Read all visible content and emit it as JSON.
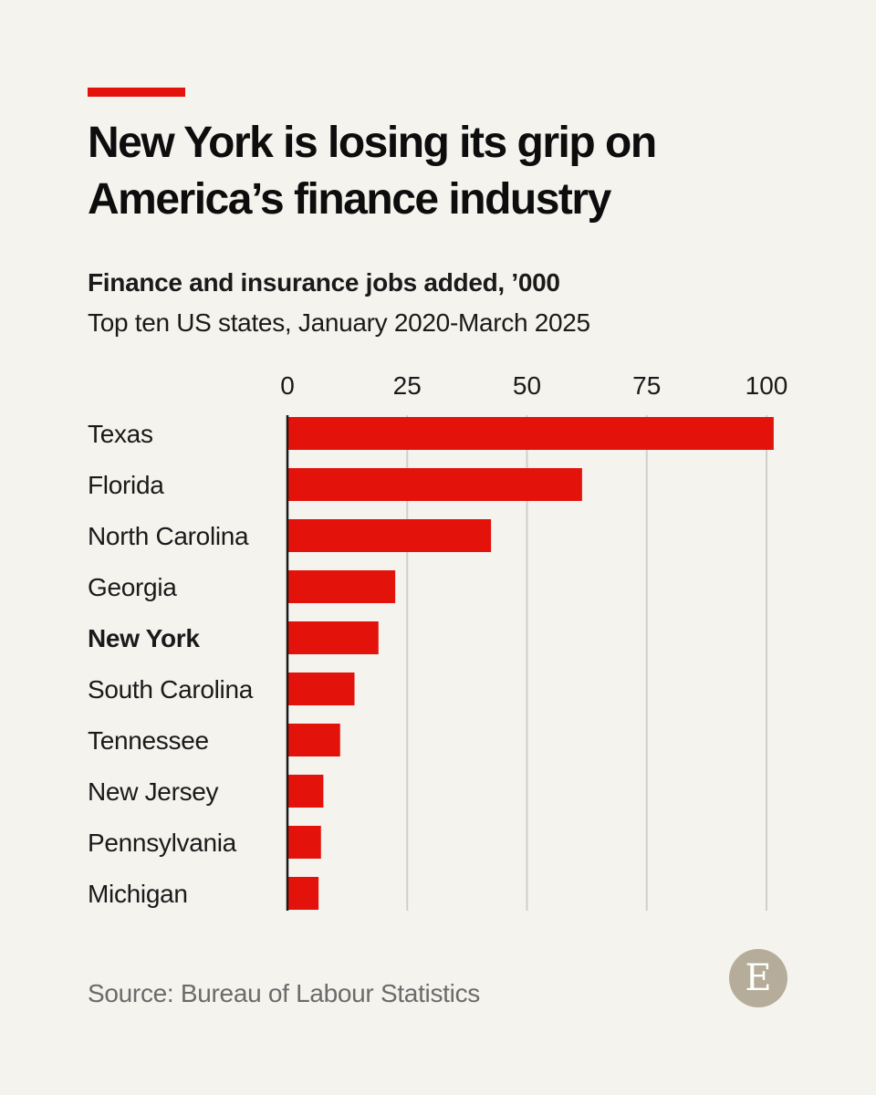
{
  "header": {
    "title_line1": "New York is losing its grip on",
    "title_line2": "America’s finance industry",
    "subtitle": "Finance and insurance jobs added, ’000",
    "description": "Top ten US states, January 2020-March 2025"
  },
  "footer": {
    "source": "Source: Bureau of Labour Statistics",
    "logo_letter": "E"
  },
  "colors": {
    "accent": "#e3120b",
    "bar": "#e3120b",
    "gridline": "#d0cfcb",
    "baseline": "#1a1a1a",
    "logo_bg": "#b5ad99"
  },
  "chart_data": {
    "type": "bar",
    "orientation": "horizontal",
    "categories": [
      "Texas",
      "Florida",
      "North Carolina",
      "Georgia",
      "New York",
      "South Carolina",
      "Tennessee",
      "New Jersey",
      "Pennsylvania",
      "Michigan"
    ],
    "values": [
      101.5,
      61.5,
      42.5,
      22.5,
      19,
      14,
      11,
      7.5,
      7,
      6.5
    ],
    "highlight": "New York",
    "xlim": [
      0,
      100
    ],
    "xticks": [
      0,
      25,
      50,
      75,
      100
    ],
    "grid": true,
    "xlabel": "",
    "ylabel": ""
  }
}
